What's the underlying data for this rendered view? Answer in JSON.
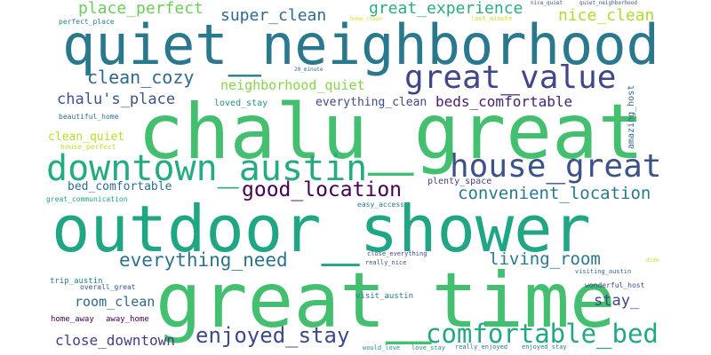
{
  "words": [
    {
      "text": "quiet_neighborhood",
      "color": "#2a788e"
    },
    {
      "text": "chalu_great",
      "color": "#44bf70"
    },
    {
      "text": "outdoor_shower",
      "color": "#21a685"
    },
    {
      "text": "great_time",
      "color": "#44bf70"
    },
    {
      "text": "downtown_austin",
      "color": "#25ab82"
    },
    {
      "text": "house_great",
      "color": "#3b528b"
    },
    {
      "text": "great_value",
      "color": "#404688"
    },
    {
      "text": "comfortable_bed",
      "color": "#22a884"
    },
    {
      "text": "enjoyed_stay",
      "color": "#3e4989"
    },
    {
      "text": "good_location",
      "color": "#440154"
    },
    {
      "text": "everything_need",
      "color": "#2c728e"
    },
    {
      "text": "convenient_location",
      "color": "#2a788e"
    },
    {
      "text": "living_room",
      "color": "#2a788e"
    },
    {
      "text": "clean_cozy",
      "color": "#31688e"
    },
    {
      "text": "great_experience",
      "color": "#29af7f"
    },
    {
      "text": "place_perfect",
      "color": "#6ccd5a"
    },
    {
      "text": "super_clean",
      "color": "#31688e"
    },
    {
      "text": "nice_clean",
      "color": "#addc30"
    },
    {
      "text": "chalu's_place",
      "color": "#3b528b"
    },
    {
      "text": "neighborhood_quiet",
      "color": "#86d549"
    },
    {
      "text": "close_downtown",
      "color": "#433e85"
    },
    {
      "text": "beds_comfortable",
      "color": "#482173"
    },
    {
      "text": "room_clean",
      "color": "#31688e"
    },
    {
      "text": "stay_",
      "color": "#414487"
    },
    {
      "text": "bed_comfortable",
      "color": "#2e6e8e"
    },
    {
      "text": "everything_clean",
      "color": "#3e4a89"
    },
    {
      "text": "clean_quiet",
      "color": "#b5de2b"
    },
    {
      "text": "loved_stay",
      "color": "#21918c"
    },
    {
      "text": "plenty_space",
      "color": "#414487"
    },
    {
      "text": "amazing_host",
      "color": "#31688e"
    },
    {
      "text": "beautiful_home",
      "color": "#2c728e"
    },
    {
      "text": "house_perfect",
      "color": "#bddf26"
    },
    {
      "text": "great_communication",
      "color": "#1f9e89"
    },
    {
      "text": "easy_access",
      "color": "#2a788e"
    },
    {
      "text": "trip_austin",
      "color": "#26828e"
    },
    {
      "text": "overall_great",
      "color": "#3b528b"
    },
    {
      "text": "home_away",
      "color": "#440154"
    },
    {
      "text": "away_home",
      "color": "#440154"
    },
    {
      "text": "visit_austin",
      "color": "#2a788e"
    },
    {
      "text": "close_everything",
      "color": "#414487"
    },
    {
      "text": "really_nice",
      "color": "#3b528b"
    },
    {
      "text": "visiting_austin",
      "color": "#2e6e8e"
    },
    {
      "text": "wonderful_host",
      "color": "#3e4989"
    },
    {
      "text": "would_love",
      "color": "#21918c"
    },
    {
      "text": "love_stay",
      "color": "#21918c"
    },
    {
      "text": "really_enjoyed",
      "color": "#2a788e"
    },
    {
      "text": "enjoyed_stay",
      "color": "#2a788e"
    },
    {
      "text": "perfect_place",
      "color": "#26828e"
    },
    {
      "text": "home_clean",
      "color": "#dde318"
    },
    {
      "text": "last_minute",
      "color": "#d0e11c"
    },
    {
      "text": "nice_quiet",
      "color": "#3b528b"
    },
    {
      "text": "quiet_neighborhood",
      "color": "#3b528b"
    },
    {
      "text": "20_minute",
      "color": "#2c728e"
    },
    {
      "text": "didn",
      "color": "#b5de2b"
    }
  ]
}
